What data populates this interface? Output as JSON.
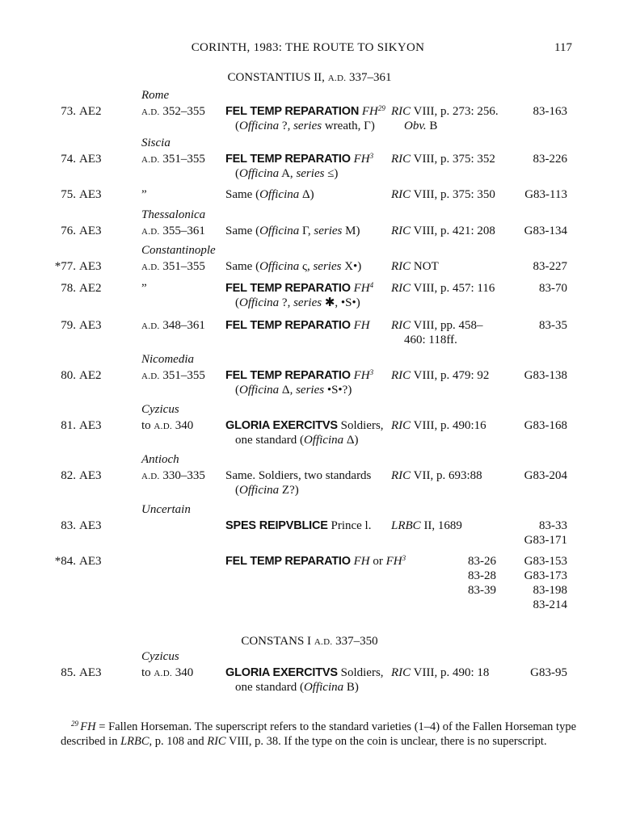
{
  "header": {
    "running_title": "CORINTH, 1983: THE ROUTE TO SIKYON",
    "page_number": "117"
  },
  "sections": [
    {
      "title": [
        [
          "r",
          "CONSTANTIUS II, "
        ],
        [
          "sc",
          "A.D."
        ],
        [
          "r",
          " 337–361"
        ]
      ]
    },
    {
      "title": [
        [
          "r",
          "CONSTANS I "
        ],
        [
          "sc",
          "A.D."
        ],
        [
          "r",
          " 337–350"
        ]
      ]
    }
  ],
  "entries": [
    {
      "num": "73.",
      "denom": "AE2",
      "place": "Rome",
      "date": [
        [
          "sc",
          "A.D."
        ],
        [
          "r",
          " 352–355"
        ]
      ],
      "type": [
        [
          [
            "b",
            "FEL TEMP REPARATION"
          ],
          [
            "r",
            " "
          ],
          [
            "i",
            "FH"
          ],
          [
            "sup",
            "29"
          ]
        ],
        [
          [
            "r",
            "("
          ],
          [
            "i",
            "Officina"
          ],
          [
            "r",
            " ?, "
          ],
          [
            "i",
            "series"
          ],
          [
            "r",
            " wreath, Γ)"
          ]
        ]
      ],
      "ref": [
        [
          [
            "i",
            "RIC"
          ],
          [
            "r",
            " VIII, p. 273: 256."
          ]
        ],
        [
          [
            "i",
            "Obv."
          ],
          [
            "r",
            " B"
          ]
        ]
      ],
      "inv": [
        "83-163"
      ]
    },
    {
      "num": "74.",
      "denom": "AE3",
      "place": "Siscia",
      "date": [
        [
          "sc",
          "A.D."
        ],
        [
          "r",
          " 351–355"
        ]
      ],
      "type": [
        [
          [
            "b",
            "FEL TEMP REPARATIO"
          ],
          [
            "r",
            " "
          ],
          [
            "i",
            "FH"
          ],
          [
            "sup",
            "3"
          ]
        ],
        [
          [
            "r",
            "("
          ],
          [
            "i",
            "Officina"
          ],
          [
            "r",
            " A, "
          ],
          [
            "i",
            "series"
          ],
          [
            "r",
            " ≤)"
          ]
        ]
      ],
      "ref": [
        [
          [
            "i",
            "RIC"
          ],
          [
            "r",
            " VIII, p. 375: 352"
          ]
        ]
      ],
      "inv": [
        "83-226"
      ]
    },
    {
      "num": "75.",
      "denom": "AE3",
      "date": [
        [
          "r",
          "   ”"
        ]
      ],
      "type": [
        [
          [
            "r",
            "Same ("
          ],
          [
            "i",
            "Officina"
          ],
          [
            "r",
            " Δ)"
          ]
        ]
      ],
      "ref": [
        [
          [
            "i",
            "RIC"
          ],
          [
            "r",
            " VIII, p. 375: 350"
          ]
        ]
      ],
      "inv": [
        "G83-113"
      ]
    },
    {
      "num": "76.",
      "denom": "AE3",
      "place": "Thessalonica",
      "date": [
        [
          "sc",
          "A.D."
        ],
        [
          "r",
          " 355–361"
        ]
      ],
      "type": [
        [
          [
            "r",
            "Same ("
          ],
          [
            "i",
            "Officina"
          ],
          [
            "r",
            " Γ, "
          ],
          [
            "i",
            "series"
          ],
          [
            "r",
            " M)"
          ]
        ]
      ],
      "ref": [
        [
          [
            "i",
            "RIC"
          ],
          [
            "r",
            " VIII, p. 421: 208"
          ]
        ]
      ],
      "inv": [
        "G83-134"
      ]
    },
    {
      "num": "*77.",
      "denom": "AE3",
      "place": "Constantinople",
      "date": [
        [
          "sc",
          "A.D."
        ],
        [
          "r",
          " 351–355"
        ]
      ],
      "type": [
        [
          [
            "r",
            "Same ("
          ],
          [
            "i",
            "Officina"
          ],
          [
            "r",
            " ς, "
          ],
          [
            "i",
            "series"
          ],
          [
            "r",
            " X•)"
          ]
        ]
      ],
      "ref": [
        [
          [
            "i",
            "RIC"
          ],
          [
            "r",
            " NOT"
          ]
        ]
      ],
      "inv": [
        "83-227"
      ]
    },
    {
      "num": "78.",
      "denom": "AE2",
      "date": [
        [
          "r",
          "   ”"
        ]
      ],
      "type": [
        [
          [
            "b",
            "FEL TEMP REPARATIO"
          ],
          [
            "r",
            " "
          ],
          [
            "i",
            "FH"
          ],
          [
            "sup",
            "4"
          ]
        ],
        [
          [
            "r",
            "("
          ],
          [
            "i",
            "Officina"
          ],
          [
            "r",
            " ?, "
          ],
          [
            "i",
            "series"
          ],
          [
            "r",
            " ✱, •S•)"
          ]
        ]
      ],
      "ref": [
        [
          [
            "i",
            "RIC"
          ],
          [
            "r",
            " VIII, p. 457: 116"
          ]
        ]
      ],
      "inv": [
        "83-70"
      ]
    },
    {
      "num": "79.",
      "denom": "AE3",
      "date": [
        [
          "sc",
          "A.D."
        ],
        [
          "r",
          " 348–361"
        ]
      ],
      "type": [
        [
          [
            "b",
            "FEL TEMP REPARATIO"
          ],
          [
            "r",
            " "
          ],
          [
            "i",
            "FH"
          ]
        ]
      ],
      "ref": [
        [
          [
            "i",
            "RIC"
          ],
          [
            "r",
            " VIII, pp. 458–"
          ]
        ],
        [
          [
            "r",
            "460: 118ff."
          ]
        ]
      ],
      "inv": [
        "83-35"
      ]
    },
    {
      "num": "80.",
      "denom": "AE2",
      "place": "Nicomedia",
      "date": [
        [
          "sc",
          "A.D."
        ],
        [
          "r",
          " 351–355"
        ]
      ],
      "type": [
        [
          [
            "b",
            "FEL TEMP REPARATIO"
          ],
          [
            "r",
            " "
          ],
          [
            "i",
            "FH"
          ],
          [
            "sup",
            "3"
          ]
        ],
        [
          [
            "r",
            "("
          ],
          [
            "i",
            "Officina"
          ],
          [
            "r",
            " Δ, "
          ],
          [
            "i",
            "series"
          ],
          [
            "r",
            " •S•?)"
          ]
        ]
      ],
      "ref": [
        [
          [
            "i",
            "RIC"
          ],
          [
            "r",
            " VIII, p. 479: 92"
          ]
        ]
      ],
      "inv": [
        "G83-138"
      ]
    },
    {
      "num": "81.",
      "denom": "AE3",
      "place": "Cyzicus",
      "date": [
        [
          "r",
          "to "
        ],
        [
          "sc",
          "A.D."
        ],
        [
          "r",
          " 340"
        ]
      ],
      "type": [
        [
          [
            "b",
            "GLORIA EXERCITVS"
          ],
          [
            "r",
            " Soldiers,"
          ]
        ],
        [
          [
            "r",
            "one standard ("
          ],
          [
            "i",
            "Officina"
          ],
          [
            "r",
            " Δ)"
          ]
        ]
      ],
      "ref": [
        [
          [
            "i",
            "RIC"
          ],
          [
            "r",
            " VIII, p. 490:16"
          ]
        ]
      ],
      "inv": [
        "G83-168"
      ]
    },
    {
      "num": "82.",
      "denom": "AE3",
      "place": "Antioch",
      "date": [
        [
          "sc",
          "A.D."
        ],
        [
          "r",
          " 330–335"
        ]
      ],
      "type": [
        [
          [
            "r",
            "Same. Soldiers, two standards"
          ]
        ],
        [
          [
            "r",
            "("
          ],
          [
            "i",
            "Officina"
          ],
          [
            "r",
            " Z?)"
          ]
        ]
      ],
      "ref": [
        [
          [
            "i",
            "RIC"
          ],
          [
            "r",
            " VII, p. 693:88"
          ]
        ]
      ],
      "inv": [
        "G83-204"
      ]
    },
    {
      "num": "83.",
      "denom": "AE3",
      "place": "Uncertain",
      "date": [],
      "type": [
        [
          [
            "b",
            "SPES REIPVBLICE"
          ],
          [
            "r",
            " Prince l."
          ]
        ]
      ],
      "ref": [
        [
          [
            "i",
            "LRBC"
          ],
          [
            "r",
            " II, 1689"
          ]
        ]
      ],
      "inv": [
        "83-33",
        "G83-171"
      ]
    },
    {
      "num": "*84.",
      "denom": "AE3",
      "date": [],
      "type": [
        [
          [
            "b",
            "FEL TEMP REPARATIO"
          ],
          [
            "r",
            " "
          ],
          [
            "i",
            "FH"
          ],
          [
            "r",
            " or "
          ],
          [
            "i",
            "FH"
          ],
          [
            "sup",
            "3"
          ]
        ]
      ],
      "ref": [],
      "extra_inv": [
        "83-26",
        "83-28",
        "83-39"
      ],
      "inv": [
        "G83-153",
        "G83-173",
        "83-198",
        "83-214"
      ]
    },
    {
      "num": "85.",
      "denom": "AE3",
      "place": "Cyzicus",
      "date": [
        [
          "r",
          "to "
        ],
        [
          "sc",
          "A.D."
        ],
        [
          "r",
          " 340"
        ]
      ],
      "type": [
        [
          [
            "b",
            "GLORIA EXERCITVS"
          ],
          [
            "r",
            " Soldiers,"
          ]
        ],
        [
          [
            "r",
            "one standard ("
          ],
          [
            "i",
            "Officina"
          ],
          [
            "r",
            " B)"
          ]
        ]
      ],
      "ref": [
        [
          [
            "i",
            "RIC"
          ],
          [
            "r",
            " VIII, p. 490: 18"
          ]
        ]
      ],
      "inv": [
        "G83-95"
      ]
    }
  ],
  "footnote": [
    [
      "sup",
      "29 "
    ],
    [
      "i",
      "FH"
    ],
    [
      "r",
      " = Fallen Horseman. The superscript refers to the standard varieties (1–4) of the Fallen Horseman type described in "
    ],
    [
      "i",
      "LRBC"
    ],
    [
      "r",
      ", p. 108 and "
    ],
    [
      "i",
      "RIC"
    ],
    [
      "r",
      " VIII, p. 38. If the type on the coin is unclear, there is no superscript."
    ]
  ]
}
